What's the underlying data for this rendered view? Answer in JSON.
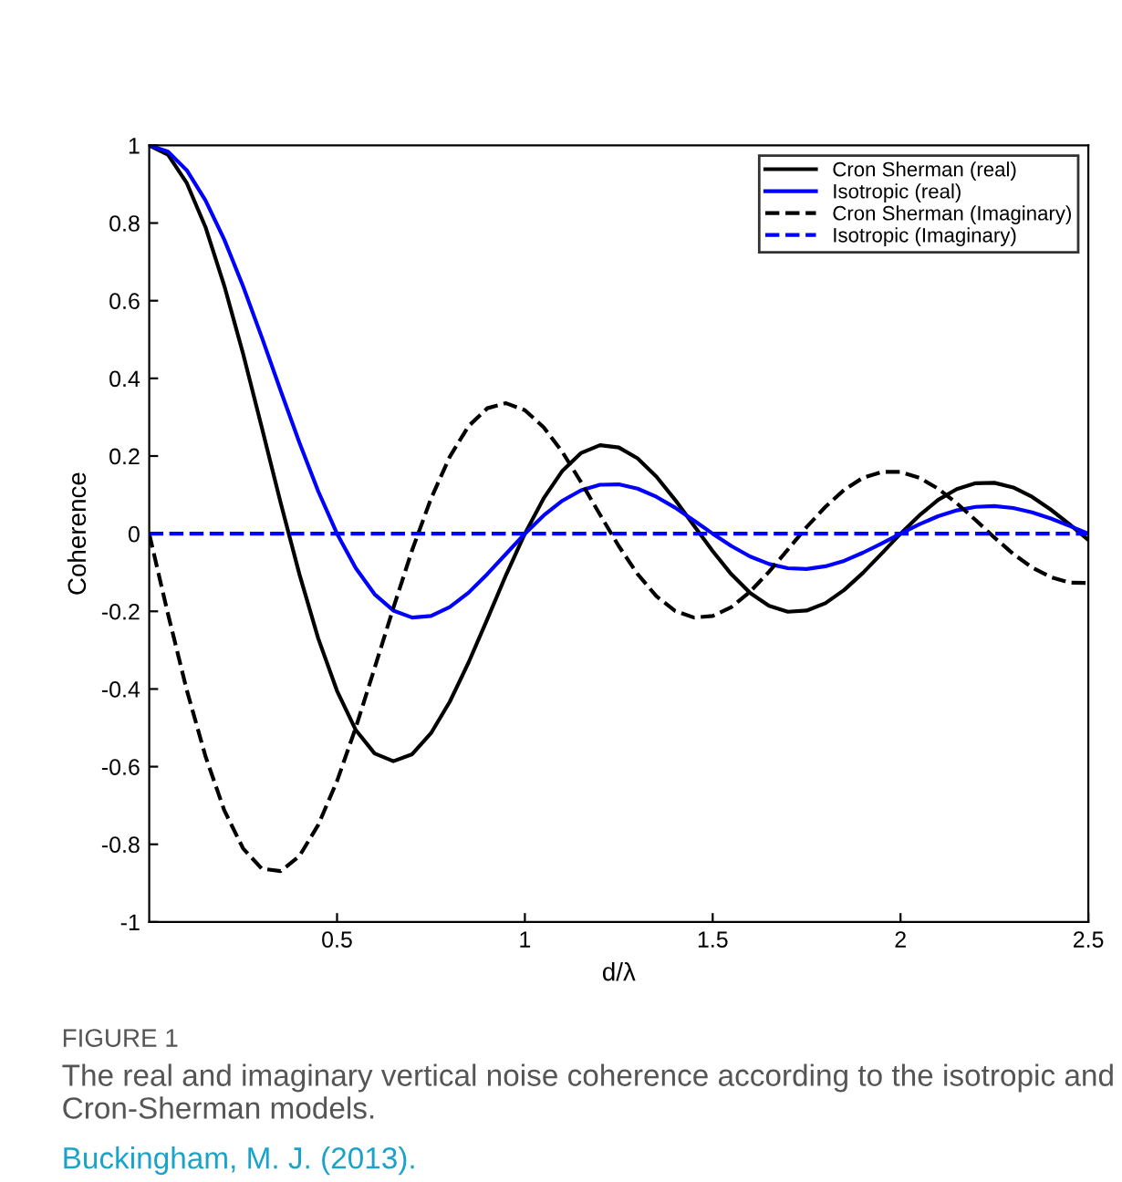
{
  "chart_data": {
    "type": "line",
    "xlabel": "d/λ",
    "ylabel": "Coherence",
    "x": [
      0,
      0.05,
      0.1,
      0.15,
      0.2,
      0.25,
      0.3,
      0.35,
      0.4,
      0.45,
      0.5,
      0.55,
      0.6,
      0.65,
      0.7,
      0.75,
      0.8,
      0.85,
      0.9,
      0.95,
      1.0,
      1.05,
      1.1,
      1.15,
      1.2,
      1.25,
      1.3,
      1.35,
      1.4,
      1.45,
      1.5,
      1.55,
      1.6,
      1.65,
      1.7,
      1.75,
      1.8,
      1.85,
      1.9,
      1.95,
      2.0,
      2.05,
      2.1,
      2.15,
      2.2,
      2.25,
      2.3,
      2.35,
      2.4,
      2.45,
      2.5
    ],
    "series": [
      {
        "name": "Cron Sherman (real)",
        "color": "#000000",
        "line_style": "solid",
        "values": [
          1,
          0.976,
          0.903,
          0.789,
          0.638,
          0.463,
          0.272,
          0.079,
          -0.105,
          -0.27,
          -0.405,
          -0.506,
          -0.566,
          -0.586,
          -0.568,
          -0.514,
          -0.433,
          -0.332,
          -0.22,
          -0.106,
          0,
          0.091,
          0.162,
          0.208,
          0.228,
          0.222,
          0.194,
          0.147,
          0.087,
          0.021,
          -0.045,
          -0.105,
          -0.153,
          -0.186,
          -0.201,
          -0.198,
          -0.179,
          -0.145,
          -0.101,
          -0.051,
          0,
          0.047,
          0.087,
          0.115,
          0.13,
          0.131,
          0.119,
          0.095,
          0.062,
          0.024,
          -0.016
        ]
      },
      {
        "name": "Isotropic (real)",
        "color": "#0000ff",
        "line_style": "solid",
        "values": [
          1,
          0.984,
          0.936,
          0.858,
          0.757,
          0.637,
          0.505,
          0.368,
          0.234,
          0.109,
          0,
          -0.089,
          -0.156,
          -0.198,
          -0.216,
          -0.212,
          -0.189,
          -0.152,
          -0.104,
          -0.052,
          0,
          0.047,
          0.085,
          0.112,
          0.126,
          0.127,
          0.116,
          0.095,
          0.067,
          0.034,
          0,
          -0.032,
          -0.059,
          -0.078,
          -0.089,
          -0.091,
          -0.084,
          -0.07,
          -0.049,
          -0.025,
          0,
          0.024,
          0.045,
          0.06,
          0.069,
          0.071,
          0.066,
          0.055,
          0.039,
          0.02,
          0
        ]
      },
      {
        "name": "Cron Sherman (Imaginary)",
        "color": "#000000",
        "line_style": "dashed",
        "values": [
          0,
          -0.207,
          -0.403,
          -0.574,
          -0.713,
          -0.811,
          -0.863,
          -0.869,
          -0.83,
          -0.75,
          -0.637,
          -0.499,
          -0.346,
          -0.191,
          -0.042,
          0.09,
          0.198,
          0.277,
          0.323,
          0.336,
          0.318,
          0.274,
          0.21,
          0.132,
          0.049,
          -0.032,
          -0.104,
          -0.161,
          -0.199,
          -0.216,
          -0.212,
          -0.189,
          -0.149,
          -0.098,
          -0.041,
          0.017,
          0.069,
          0.113,
          0.144,
          0.159,
          0.159,
          0.144,
          0.116,
          0.078,
          0.035,
          -0.01,
          -0.052,
          -0.087,
          -0.112,
          -0.126,
          -0.127
        ]
      },
      {
        "name": "Isotropic (Imaginary)",
        "color": "#0000ff",
        "line_style": "dashed",
        "values": [
          0,
          0,
          0,
          0,
          0,
          0,
          0,
          0,
          0,
          0,
          0,
          0,
          0,
          0,
          0,
          0,
          0,
          0,
          0,
          0,
          0,
          0,
          0,
          0,
          0,
          0,
          0,
          0,
          0,
          0,
          0,
          0,
          0,
          0,
          0,
          0,
          0,
          0,
          0,
          0,
          0,
          0,
          0,
          0,
          0,
          0,
          0,
          0,
          0,
          0,
          0
        ]
      }
    ],
    "xlim": [
      0,
      2.5
    ],
    "xticks": [
      0.5,
      1,
      1.5,
      2,
      2.5
    ],
    "ylim": [
      -1,
      1
    ],
    "yticks": [
      -1,
      -0.8,
      -0.6,
      -0.4,
      -0.2,
      0,
      0.2,
      0.4,
      0.6,
      0.8,
      1
    ],
    "legend": "top right",
    "grid": false,
    "annotations": [
      "FIGURE 1",
      "The real and imaginary vertical noise coherence according to the isotropic and Cron-Sherman models.",
      "Buckingham, M. J. (2013)."
    ]
  }
}
